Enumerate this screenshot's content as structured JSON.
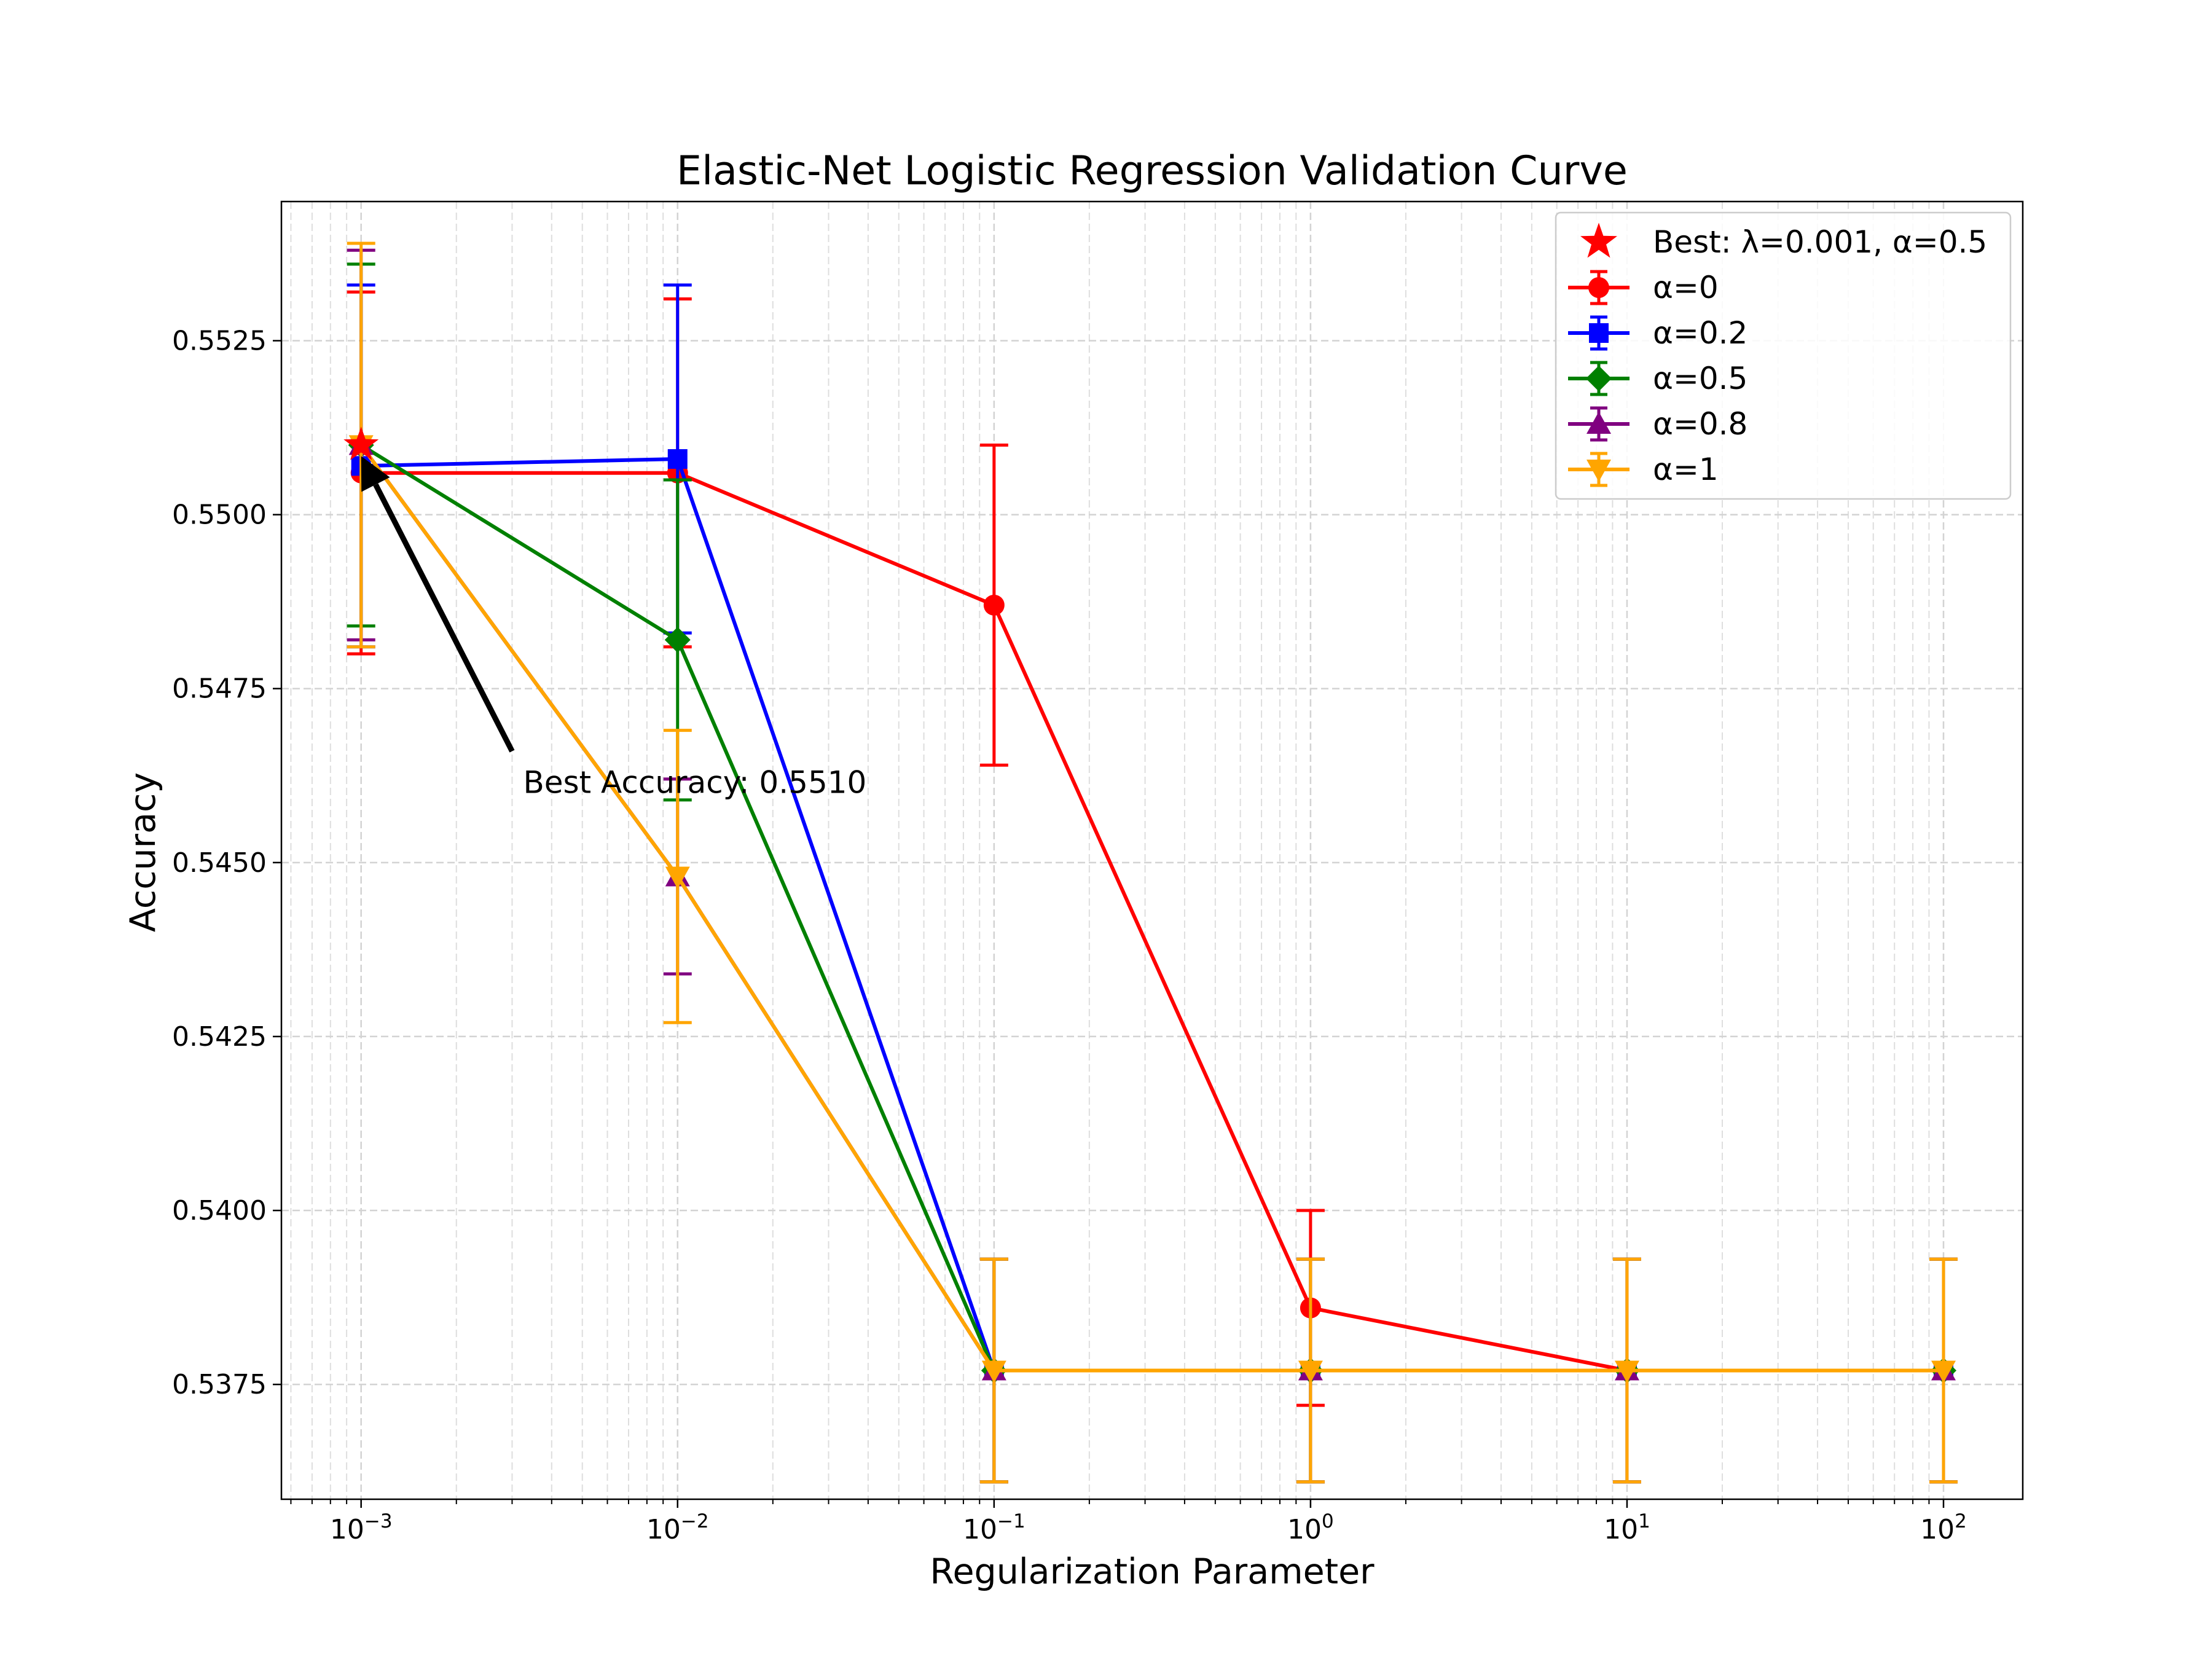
{
  "chart_data": {
    "type": "line",
    "title": "Elastic-Net Logistic Regression Validation Curve",
    "xlabel": "Regularization Parameter",
    "ylabel": "Accuracy",
    "xscale": "log",
    "xlim": [
      0.00056,
      178
    ],
    "ylim": [
      0.53585,
      0.5545
    ],
    "grid": true,
    "grid_minor": true,
    "legend_position": "top-right",
    "x": [
      0.001,
      0.01,
      0.1,
      1,
      10,
      100
    ],
    "x_tick_labels": [
      {
        "base": "10",
        "exp": "−3"
      },
      {
        "base": "10",
        "exp": "−2"
      },
      {
        "base": "10",
        "exp": "−1"
      },
      {
        "base": "10",
        "exp": "0"
      },
      {
        "base": "10",
        "exp": "1"
      },
      {
        "base": "10",
        "exp": "2"
      }
    ],
    "y_ticks": [
      0.5375,
      0.54,
      0.5425,
      0.545,
      0.5475,
      0.55,
      0.5525
    ],
    "y_tick_labels": [
      "0.5375",
      "0.5400",
      "0.5425",
      "0.5450",
      "0.5475",
      "0.5500",
      "0.5525"
    ],
    "best": {
      "label": "Best: λ=0.001, α=0.5",
      "x": 0.001,
      "y": 0.551,
      "color": "#ff0000",
      "marker": "star"
    },
    "annotation": {
      "text": "Best Accuracy: 0.5510",
      "x": 0.001,
      "y": 0.551,
      "text_x": 0.003,
      "text_y": 0.5466
    },
    "series": [
      {
        "name": "α=0",
        "color": "#ff0000",
        "marker": "circle",
        "values": [
          0.5506,
          0.5506,
          0.5487,
          0.5386,
          0.5377,
          0.5377
        ],
        "errors": [
          0.0026,
          0.0025,
          0.0023,
          0.0014,
          0.0016,
          0.0016
        ]
      },
      {
        "name": "α=0.2",
        "color": "#0000ff",
        "marker": "square",
        "values": [
          0.5507,
          0.5508,
          0.5377,
          0.5377,
          0.5377,
          0.5377
        ],
        "errors": [
          0.0026,
          0.0025,
          0.0016,
          0.0016,
          0.0016,
          0.0016
        ]
      },
      {
        "name": "α=0.5",
        "color": "#008000",
        "marker": "diamond",
        "values": [
          0.551,
          0.5482,
          0.5377,
          0.5377,
          0.5377,
          0.5377
        ],
        "errors": [
          0.0026,
          0.0023,
          0.0016,
          0.0016,
          0.0016,
          0.0016
        ]
      },
      {
        "name": "α=0.8",
        "color": "#800080",
        "marker": "triangle-up",
        "values": [
          0.551,
          0.5448,
          0.5377,
          0.5377,
          0.5377,
          0.5377
        ],
        "errors": [
          0.0028,
          0.0014,
          0.0016,
          0.0016,
          0.0016,
          0.0016
        ]
      },
      {
        "name": "α=1",
        "color": "#ffa500",
        "marker": "triangle-down",
        "values": [
          0.551,
          0.5448,
          0.5377,
          0.5377,
          0.5377,
          0.5377
        ],
        "errors": [
          0.0029,
          0.0021,
          0.0016,
          0.0016,
          0.0016,
          0.0016
        ]
      }
    ]
  }
}
